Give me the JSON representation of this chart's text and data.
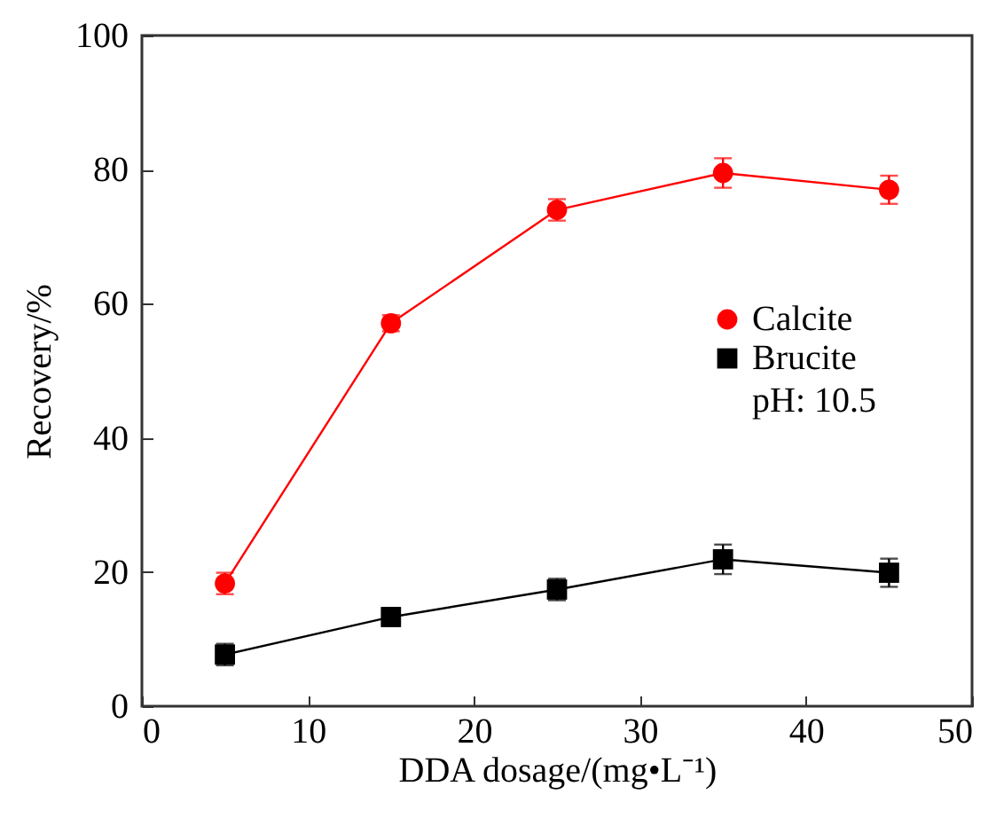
{
  "chart_data": {
    "type": "line",
    "xlabel": "DDA dosage/(mg•L⁻¹)",
    "ylabel": "Recovery/%",
    "x": [
      5,
      15,
      25,
      35,
      45
    ],
    "series": [
      {
        "name": "Calcite",
        "color": "#ff0000",
        "marker": "circle",
        "values": [
          18.3,
          57.1,
          74.0,
          79.5,
          77.0
        ],
        "errors": [
          1.6,
          1.2,
          1.6,
          2.2,
          2.1
        ]
      },
      {
        "name": "Brucite",
        "color": "#000000",
        "marker": "square",
        "values": [
          7.7,
          13.3,
          17.4,
          21.9,
          19.9
        ],
        "errors": [
          1.6,
          1.3,
          1.6,
          2.2,
          2.1
        ]
      }
    ],
    "annotations": [
      "pH: 10.5"
    ],
    "xlim": [
      0,
      50
    ],
    "xticks": [
      0,
      10,
      20,
      30,
      40,
      50
    ],
    "ylim": [
      0,
      100
    ],
    "yticks": [
      0,
      20,
      40,
      60,
      80,
      100
    ],
    "legend": "right",
    "line_style": "solid"
  }
}
